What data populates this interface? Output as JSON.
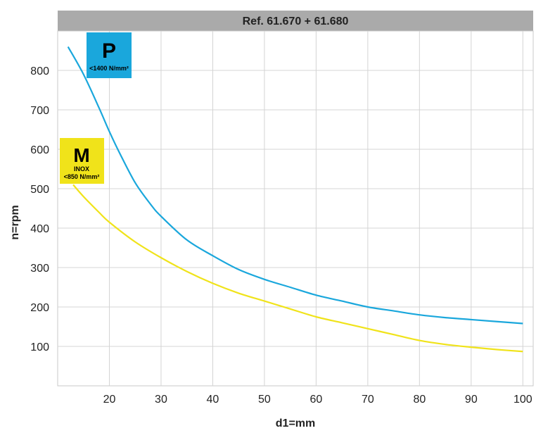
{
  "chart_data": {
    "type": "line",
    "title": "Ref. 61.670 + 61.680",
    "xlabel": "d1=mm",
    "ylabel": "n=rpm",
    "xlim": [
      10,
      102
    ],
    "ylim": [
      0,
      900
    ],
    "xticks": [
      20,
      30,
      40,
      50,
      60,
      70,
      80,
      90,
      100
    ],
    "yticks": [
      100,
      200,
      300,
      400,
      500,
      600,
      700,
      800
    ],
    "grid": true,
    "series": [
      {
        "name": "P",
        "color": "#1aa7dc",
        "x": [
          12,
          15,
          18,
          20,
          22,
          25,
          28,
          30,
          35,
          40,
          45,
          50,
          55,
          60,
          65,
          70,
          75,
          80,
          85,
          90,
          95,
          100
        ],
        "y": [
          860,
          790,
          705,
          645,
          590,
          515,
          460,
          430,
          370,
          330,
          295,
          270,
          250,
          230,
          215,
          200,
          190,
          180,
          173,
          168,
          163,
          158
        ]
      },
      {
        "name": "M",
        "color": "#f0e31a",
        "x": [
          13,
          15,
          18,
          20,
          25,
          30,
          35,
          40,
          45,
          50,
          55,
          60,
          65,
          70,
          75,
          80,
          85,
          90,
          95,
          100
        ],
        "y": [
          510,
          480,
          440,
          415,
          365,
          325,
          290,
          260,
          235,
          215,
          195,
          175,
          160,
          145,
          130,
          115,
          105,
          98,
          92,
          87
        ]
      }
    ]
  },
  "badges": {
    "p": {
      "letter": "P",
      "sub": "<1400 N/mm²",
      "color": "#1aa7dc"
    },
    "m": {
      "letter": "M",
      "line1": "INOX",
      "sub": "<850 N/mm²",
      "color": "#f0e31a"
    }
  }
}
